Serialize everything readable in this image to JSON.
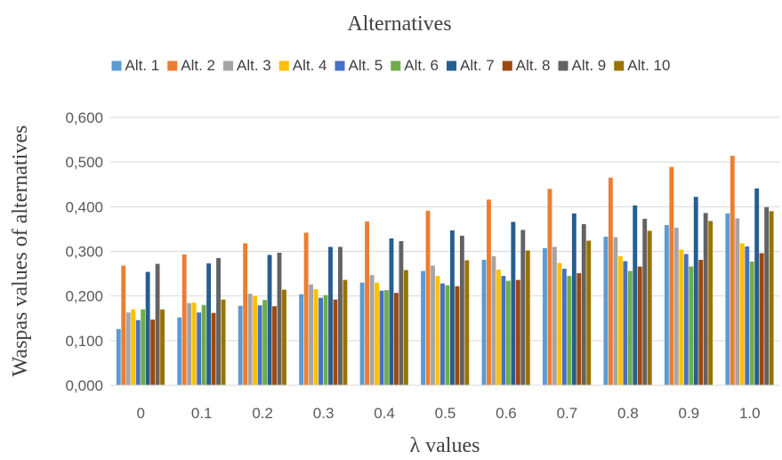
{
  "chart_data": {
    "type": "bar",
    "title": "Alternatives",
    "xlabel": "λ values",
    "ylabel": "Waspas values of alternatives",
    "categories": [
      "0",
      "0.1",
      "0.2",
      "0.3",
      "0.4",
      "0.5",
      "0.6",
      "0.7",
      "0.8",
      "0.9",
      "1.0"
    ],
    "ylim": [
      0,
      0.6
    ],
    "yticks": [
      "0,000",
      "0,100",
      "0,200",
      "0,300",
      "0,400",
      "0,500",
      "0,600"
    ],
    "grid": true,
    "legend_position": "top",
    "series": [
      {
        "name": "Alt. 1",
        "color": "#5b9bd5",
        "values": [
          0.126,
          0.152,
          0.178,
          0.204,
          0.23,
          0.256,
          0.281,
          0.307,
          0.333,
          0.359,
          0.385
        ]
      },
      {
        "name": "Alt. 2",
        "color": "#ed7d31",
        "values": [
          0.268,
          0.293,
          0.318,
          0.342,
          0.367,
          0.391,
          0.416,
          0.44,
          0.465,
          0.489,
          0.514
        ]
      },
      {
        "name": "Alt. 3",
        "color": "#a5a5a5",
        "values": [
          0.163,
          0.184,
          0.205,
          0.226,
          0.247,
          0.268,
          0.289,
          0.31,
          0.332,
          0.353,
          0.374
        ]
      },
      {
        "name": "Alt. 4",
        "color": "#ffc000",
        "values": [
          0.17,
          0.185,
          0.2,
          0.215,
          0.23,
          0.245,
          0.259,
          0.274,
          0.289,
          0.304,
          0.318
        ]
      },
      {
        "name": "Alt. 5",
        "color": "#4472c4",
        "values": [
          0.146,
          0.163,
          0.179,
          0.196,
          0.212,
          0.228,
          0.245,
          0.261,
          0.278,
          0.294,
          0.311
        ]
      },
      {
        "name": "Alt. 6",
        "color": "#70ad47",
        "values": [
          0.17,
          0.18,
          0.191,
          0.202,
          0.213,
          0.224,
          0.234,
          0.245,
          0.256,
          0.266,
          0.277
        ]
      },
      {
        "name": "Alt. 7",
        "color": "#255e91",
        "values": [
          0.254,
          0.273,
          0.292,
          0.31,
          0.329,
          0.347,
          0.366,
          0.385,
          0.403,
          0.422,
          0.441
        ]
      },
      {
        "name": "Alt. 8",
        "color": "#9e480e",
        "values": [
          0.147,
          0.162,
          0.177,
          0.192,
          0.207,
          0.222,
          0.236,
          0.251,
          0.266,
          0.281,
          0.296
        ]
      },
      {
        "name": "Alt. 9",
        "color": "#636363",
        "values": [
          0.272,
          0.285,
          0.297,
          0.31,
          0.323,
          0.335,
          0.348,
          0.361,
          0.373,
          0.386,
          0.399
        ]
      },
      {
        "name": "Alt. 10",
        "color": "#997300",
        "values": [
          0.17,
          0.192,
          0.214,
          0.236,
          0.258,
          0.28,
          0.302,
          0.324,
          0.346,
          0.368,
          0.39
        ]
      }
    ]
  }
}
